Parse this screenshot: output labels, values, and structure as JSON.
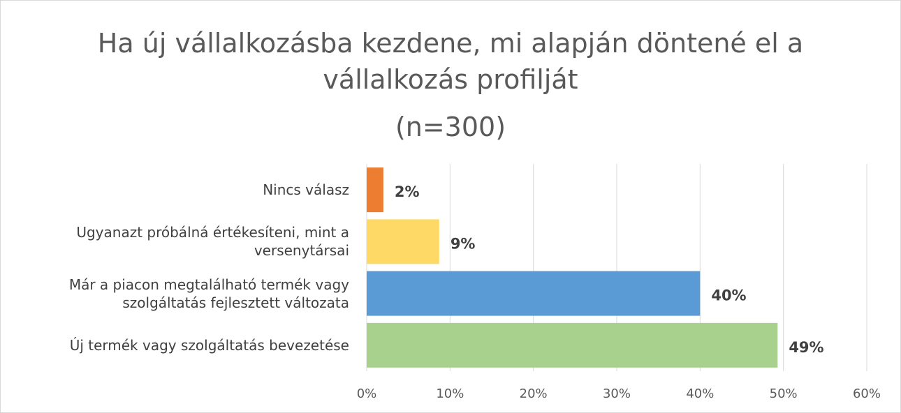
{
  "chart_data": {
    "type": "bar",
    "orientation": "horizontal",
    "title": "Ha új vállalkozásba kezdene, mi alapján döntené el a vállalkozás profilját",
    "subtitle": "(n=300)",
    "categories": [
      "Nincs válasz",
      "Ugyanazt próbálná értékesíteni, mint a versenytársai",
      "Már a piacon megtalálható termék vagy szolgáltatás fejlesztett változata",
      "Új termék vagy szolgáltatás bevezetése"
    ],
    "values": [
      2,
      8.7,
      40,
      49.3
    ],
    "value_labels": [
      "2%",
      "9%",
      "40%",
      "49%"
    ],
    "colors": [
      "#ed7d31",
      "#ffd966",
      "#5b9bd5",
      "#a9d18e"
    ],
    "xlim": [
      0,
      60
    ],
    "xticks": [
      {
        "value": 0,
        "label": "0%"
      },
      {
        "value": 10,
        "label": "10%"
      },
      {
        "value": 20,
        "label": "20%"
      },
      {
        "value": 30,
        "label": "30%"
      },
      {
        "value": 40,
        "label": "40%"
      },
      {
        "value": 50,
        "label": "50%"
      },
      {
        "value": 60,
        "label": "60%"
      }
    ],
    "grid": true
  }
}
